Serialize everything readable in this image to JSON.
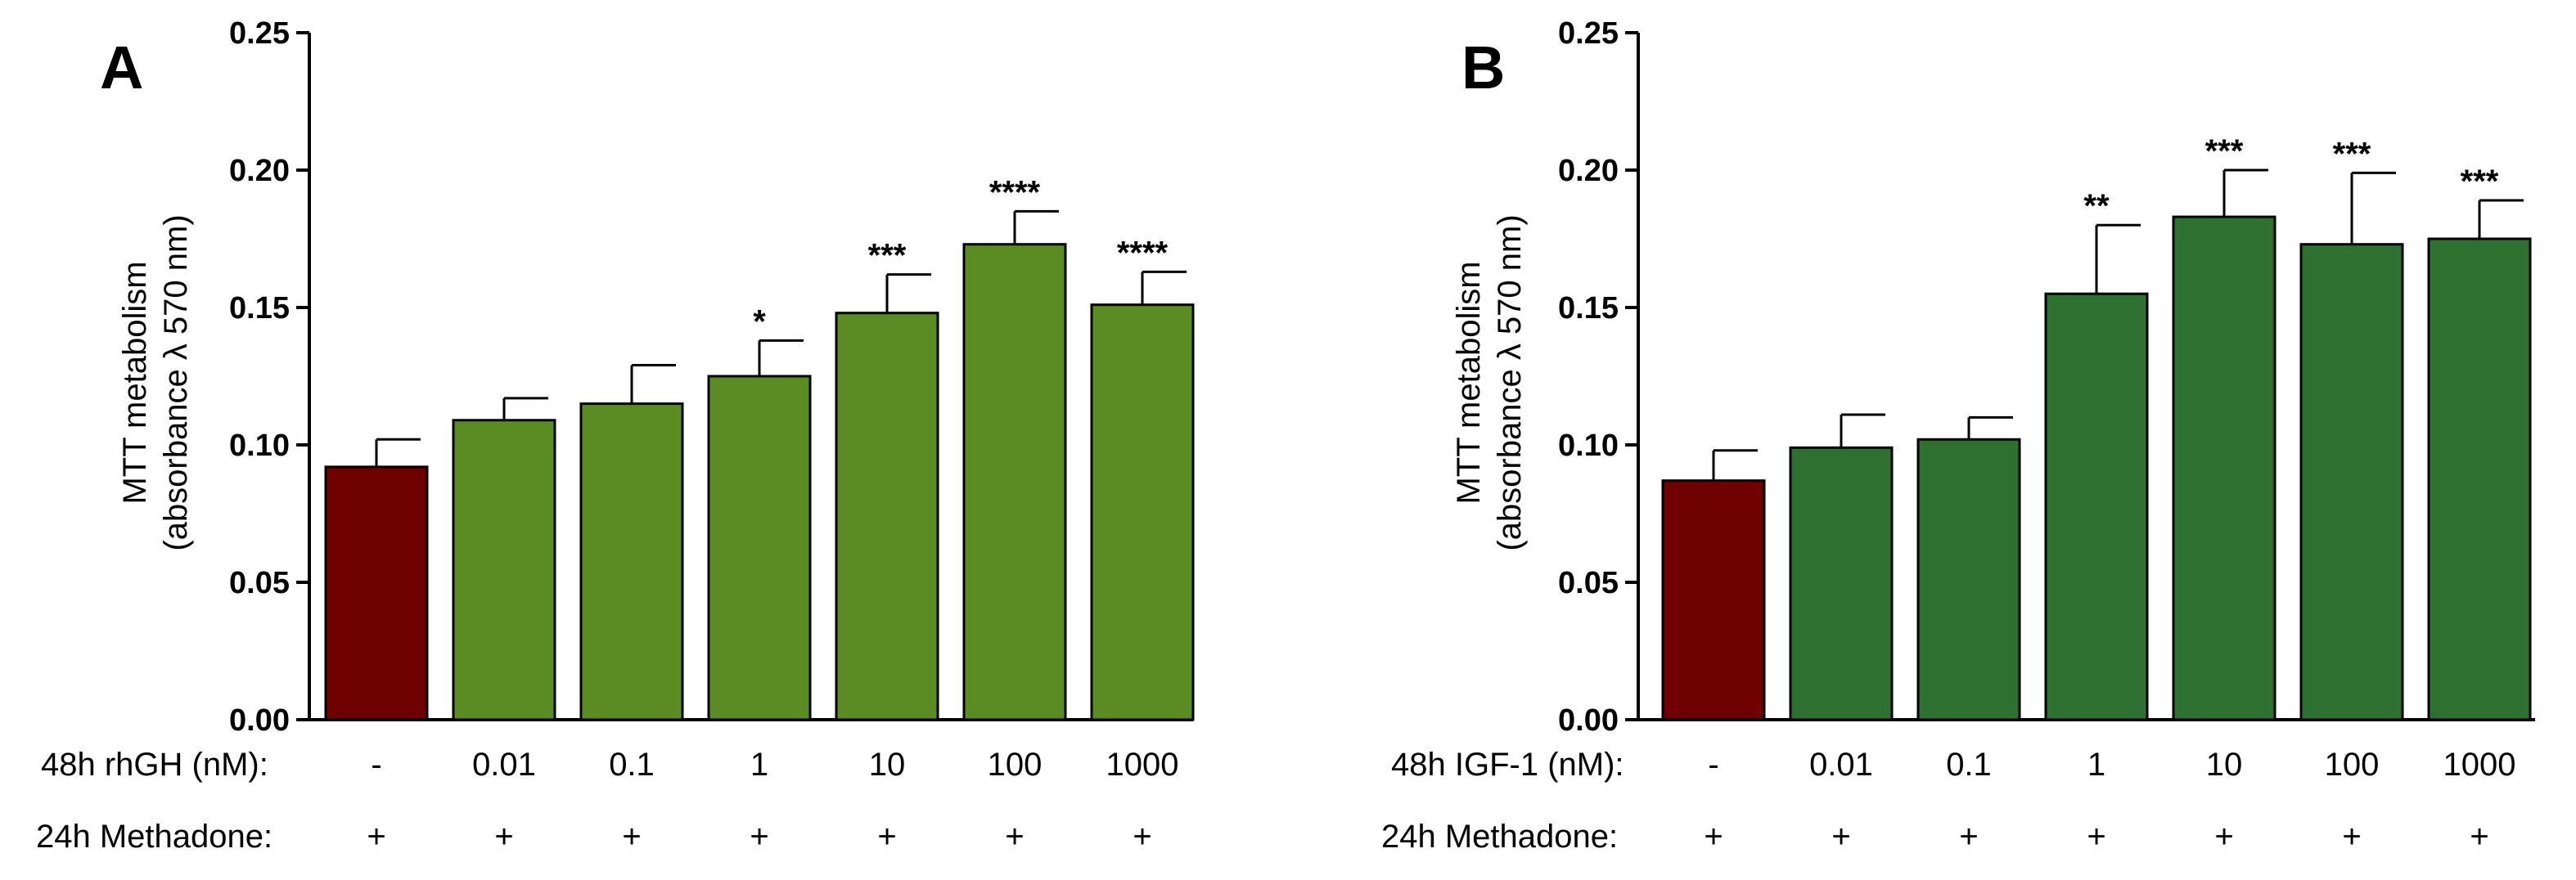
{
  "chart_data": [
    {
      "type": "bar",
      "panel": "A",
      "ylabel_line1": "MTT metabolism",
      "ylabel_line2": "(absorbance λ 570 nm)",
      "ylim": [
        0,
        0.25
      ],
      "yticks": [
        "0.00",
        "0.05",
        "0.10",
        "0.15",
        "0.20",
        "0.25"
      ],
      "row1_label": "48h rhGH (nM):",
      "row2_label": "24h Methadone:",
      "categories": [
        "-",
        "0.01",
        "0.1",
        "1",
        "10",
        "100",
        "1000"
      ],
      "methadone": [
        "+",
        "+",
        "+",
        "+",
        "+",
        "+",
        "+"
      ],
      "values": [
        0.092,
        0.109,
        0.115,
        0.125,
        0.148,
        0.173,
        0.151
      ],
      "errors": [
        0.01,
        0.008,
        0.014,
        0.013,
        0.014,
        0.012,
        0.012
      ],
      "significance": [
        "",
        "",
        "",
        "*",
        "***",
        "****",
        "****"
      ],
      "colors": [
        "#6e0000",
        "#5a8c23",
        "#5a8c23",
        "#5a8c23",
        "#5a8c23",
        "#5a8c23",
        "#5a8c23"
      ],
      "grid": false
    },
    {
      "type": "bar",
      "panel": "B",
      "ylabel_line1": "MTT metabolism",
      "ylabel_line2": "(absorbance λ 570 nm)",
      "ylim": [
        0,
        0.25
      ],
      "yticks": [
        "0.00",
        "0.05",
        "0.10",
        "0.15",
        "0.20",
        "0.25"
      ],
      "row1_label": "48h IGF-1 (nM):",
      "row2_label": "24h Methadone:",
      "categories": [
        "-",
        "0.01",
        "0.1",
        "1",
        "10",
        "100",
        "1000"
      ],
      "methadone": [
        "+",
        "+",
        "+",
        "+",
        "+",
        "+",
        "+"
      ],
      "values": [
        0.087,
        0.099,
        0.102,
        0.155,
        0.183,
        0.173,
        0.175
      ],
      "errors": [
        0.011,
        0.012,
        0.008,
        0.025,
        0.017,
        0.026,
        0.014
      ],
      "significance": [
        "",
        "",
        "",
        "**",
        "***",
        "***",
        "***"
      ],
      "colors": [
        "#6e0000",
        "#2e7030",
        "#2e7030",
        "#2e7030",
        "#2e7030",
        "#2e7030",
        "#2e7030"
      ],
      "grid": false
    }
  ]
}
